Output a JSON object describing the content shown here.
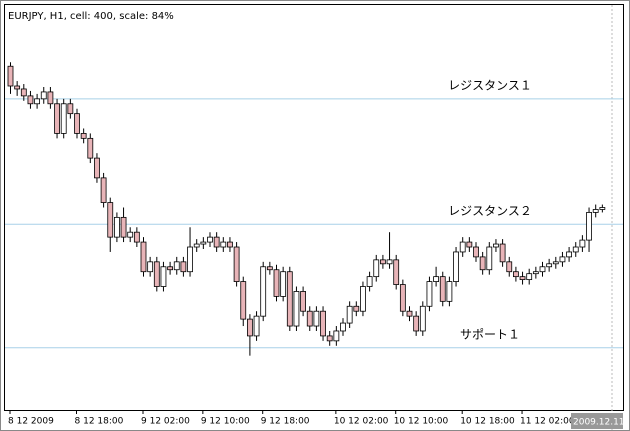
{
  "chart_data": {
    "type": "candlestick",
    "title": "EURJPY, H1, cell: 400, scale: 84%",
    "categories": [
      "8 12 2009",
      null,
      null,
      null,
      null,
      null,
      null,
      null,
      null,
      null,
      "8 12 18:00",
      null,
      null,
      null,
      null,
      null,
      null,
      null,
      null,
      null,
      "9 12 02:00",
      null,
      null,
      null,
      null,
      null,
      null,
      null,
      null,
      "9 12 10:00",
      null,
      null,
      null,
      null,
      null,
      null,
      null,
      null,
      "9 12 18:00",
      null,
      null,
      null,
      null,
      null,
      null,
      null,
      null,
      null,
      null,
      "10 12 02:00",
      null,
      null,
      null,
      null,
      null,
      null,
      null,
      null,
      "10 12 10:00",
      null,
      null,
      null,
      null,
      null,
      null,
      null,
      null,
      null,
      "10 12 18:00",
      null,
      null,
      null,
      null,
      null,
      null,
      null,
      null,
      "11 12 02:00",
      null,
      null,
      null,
      null,
      null,
      null,
      null,
      null,
      null,
      null,
      null,
      null
    ],
    "open": [
      348,
      328,
      325,
      318,
      310,
      315,
      322,
      310,
      280,
      310,
      300,
      280,
      275,
      255,
      235,
      210,
      175,
      195,
      175,
      180,
      170,
      140,
      150,
      125,
      145,
      142,
      150,
      140,
      165,
      168,
      170,
      175,
      165,
      170,
      165,
      130,
      92,
      75,
      95,
      145,
      142,
      115,
      140,
      85,
      120,
      100,
      85,
      100,
      75,
      70,
      80,
      88,
      105,
      100,
      125,
      135,
      152,
      148,
      152,
      127,
      100,
      95,
      80,
      105,
      130,
      135,
      110,
      130,
      160,
      170,
      165,
      155,
      142,
      165,
      168,
      150,
      140,
      135,
      132,
      138,
      140,
      145,
      148,
      150,
      155,
      160,
      165,
      172,
      200,
      203
    ],
    "high": [
      352,
      333,
      330,
      323,
      320,
      327,
      327,
      315,
      315,
      315,
      305,
      285,
      280,
      260,
      240,
      215,
      200,
      205,
      185,
      185,
      175,
      155,
      155,
      150,
      150,
      155,
      155,
      185,
      173,
      175,
      180,
      180,
      175,
      175,
      170,
      135,
      97,
      100,
      150,
      150,
      147,
      145,
      145,
      125,
      125,
      105,
      105,
      105,
      80,
      85,
      93,
      110,
      110,
      130,
      140,
      157,
      157,
      180,
      157,
      132,
      105,
      100,
      110,
      135,
      145,
      140,
      135,
      165,
      175,
      175,
      170,
      160,
      170,
      173,
      173,
      155,
      145,
      140,
      143,
      145,
      150,
      153,
      155,
      160,
      165,
      170,
      177,
      205,
      208,
      208
    ],
    "low": [
      320,
      318,
      313,
      305,
      305,
      310,
      305,
      275,
      275,
      295,
      275,
      270,
      250,
      230,
      205,
      160,
      170,
      170,
      170,
      165,
      135,
      135,
      120,
      120,
      137,
      137,
      135,
      135,
      160,
      163,
      165,
      160,
      160,
      160,
      125,
      85,
      55,
      70,
      90,
      137,
      110,
      110,
      80,
      80,
      95,
      80,
      80,
      70,
      65,
      65,
      75,
      83,
      95,
      95,
      120,
      130,
      143,
      143,
      122,
      95,
      90,
      75,
      75,
      100,
      125,
      105,
      105,
      125,
      155,
      160,
      150,
      137,
      137,
      160,
      145,
      135,
      130,
      127,
      127,
      133,
      135,
      140,
      143,
      145,
      150,
      155,
      160,
      160,
      195,
      200
    ],
    "close": [
      328,
      325,
      318,
      310,
      315,
      322,
      310,
      280,
      310,
      300,
      280,
      275,
      255,
      235,
      210,
      175,
      195,
      175,
      180,
      170,
      140,
      150,
      125,
      145,
      142,
      150,
      140,
      165,
      168,
      170,
      175,
      165,
      170,
      165,
      130,
      92,
      75,
      95,
      145,
      142,
      115,
      140,
      85,
      120,
      100,
      85,
      100,
      75,
      70,
      80,
      88,
      105,
      100,
      125,
      135,
      152,
      148,
      152,
      127,
      100,
      95,
      80,
      105,
      130,
      135,
      110,
      130,
      160,
      170,
      165,
      155,
      142,
      165,
      168,
      150,
      140,
      135,
      132,
      138,
      140,
      145,
      148,
      150,
      155,
      160,
      165,
      172,
      200,
      203,
      205
    ],
    "up_color": "#ffffff",
    "down_color": "#e8b4b8",
    "ylim": [
      0,
      410
    ],
    "hlines": [
      {
        "label": "レジスタンス１",
        "value": 315,
        "color": "#a8d0e8"
      },
      {
        "label": "レジスタンス２",
        "value": 188,
        "color": "#a8d0e8"
      },
      {
        "label": "サポート１",
        "value": 63,
        "color": "#a8d0e8"
      }
    ],
    "cursor_label": "2009.12.11"
  }
}
